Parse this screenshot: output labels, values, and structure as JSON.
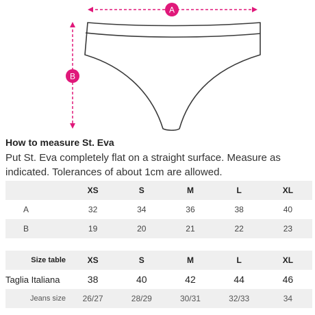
{
  "diagram": {
    "width_marker": "A",
    "length_marker": "B",
    "accent_color": "#e0187a",
    "outline_color": "#3a3a3a"
  },
  "guide": {
    "heading": "How to measure St. Eva",
    "description": "Put St. Eva completely flat on a straight surface. Measure as indicated. Tolerances of about 1cm are allowed."
  },
  "measure_table": {
    "sizes": [
      "XS",
      "S",
      "M",
      "L",
      "XL"
    ],
    "rows": [
      {
        "label": "A",
        "values": [
          "32",
          "34",
          "36",
          "38",
          "40"
        ]
      },
      {
        "label": "B",
        "values": [
          "19",
          "20",
          "21",
          "22",
          "23"
        ]
      }
    ]
  },
  "size_table": {
    "header_label": "Size table",
    "sizes": [
      "XS",
      "S",
      "M",
      "L",
      "XL"
    ],
    "italian": {
      "label": "Taglia Italiana",
      "values": [
        "38",
        "40",
        "42",
        "44",
        "46"
      ]
    },
    "jeans": {
      "label": "Jeans size",
      "values": [
        "26/27",
        "28/29",
        "30/31",
        "32/33",
        "34"
      ]
    }
  }
}
